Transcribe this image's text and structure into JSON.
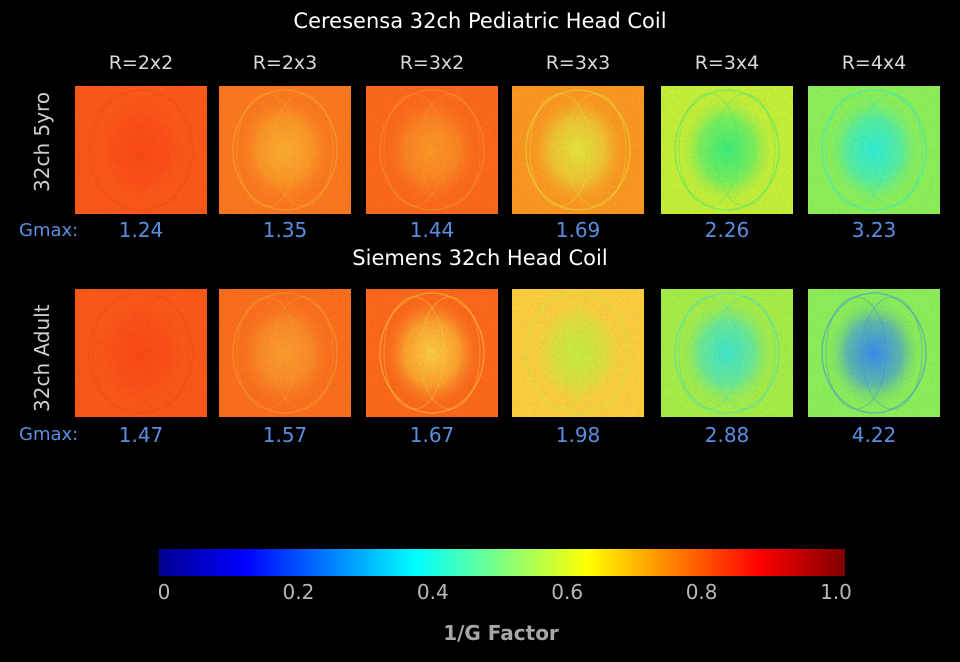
{
  "titles": {
    "top": "Ceresensa 32ch Pediatric Head Coil",
    "bottom": "Siemens 32ch Head Coil"
  },
  "columns": [
    "R=2x2",
    "R=2x3",
    "R=3x2",
    "R=3x3",
    "R=3x4",
    "R=4x4"
  ],
  "rows": [
    {
      "label": "32ch 5yro",
      "gmax_label": "Gmax:",
      "gmax_values": [
        "1.24",
        "1.35",
        "1.44",
        "1.69",
        "2.26",
        "3.23"
      ],
      "map_colors": [
        "#ff5a1a",
        "#ff7a1f",
        "#ff6a1c",
        "#ff9a22",
        "#c8f23a",
        "#8ef25a"
      ],
      "center_colors": [
        "#ff4a14",
        "#ffb030",
        "#ff9a28",
        "#e8e840",
        "#3ef07a",
        "#30f0d8"
      ]
    },
    {
      "label": "32ch Adult",
      "gmax_label": "Gmax:",
      "gmax_values": [
        "1.47",
        "1.57",
        "1.67",
        "1.98",
        "2.88",
        "4.22"
      ],
      "map_colors": [
        "#ff5a1a",
        "#ff701e",
        "#ff6a1c",
        "#ffd040",
        "#a8f04a",
        "#8ef25a"
      ],
      "center_colors": [
        "#ff4a14",
        "#ffa030",
        "#ffd040",
        "#c8f040",
        "#40e8d0",
        "#3a8ff0"
      ]
    }
  ],
  "colorbar": {
    "ticks": [
      "0",
      "0.2",
      "0.4",
      "0.6",
      "0.8",
      "1.0"
    ],
    "label": "1/G Factor"
  }
}
